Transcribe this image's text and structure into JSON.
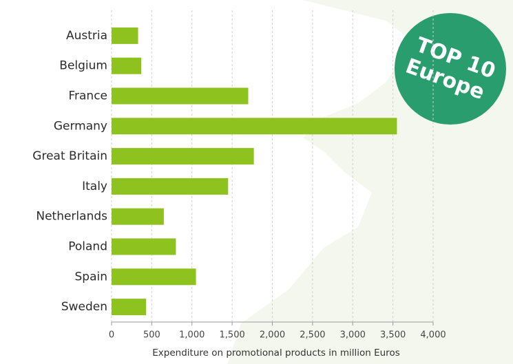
{
  "chart_data": {
    "type": "bar",
    "orientation": "horizontal",
    "x_label": "Expenditure on promotional products in million Euros",
    "categories": [
      "Austria",
      "Belgium",
      "France",
      "Germany",
      "Great Britain",
      "Italy",
      "Netherlands",
      "Poland",
      "Spain",
      "Sweden"
    ],
    "values": [
      330,
      370,
      1700,
      3550,
      1770,
      1450,
      650,
      800,
      1050,
      430
    ],
    "color": "#8dc21f",
    "xlim": [
      0,
      4000
    ],
    "xticks": [
      0,
      500,
      {
        "value": 1000,
        "label": "1,000"
      },
      {
        "value": 1500,
        "label": "1,500"
      },
      {
        "value": 2000,
        "label": "2,000"
      },
      {
        "value": 2500,
        "label": "2,500"
      },
      {
        "value": 3000,
        "label": "3,000"
      },
      {
        "value": 3500,
        "label": "3,500"
      },
      {
        "value": 4000,
        "label": "4,000"
      }
    ],
    "grid": true,
    "annotations": [
      "TOP 10",
      "Europe"
    ]
  }
}
